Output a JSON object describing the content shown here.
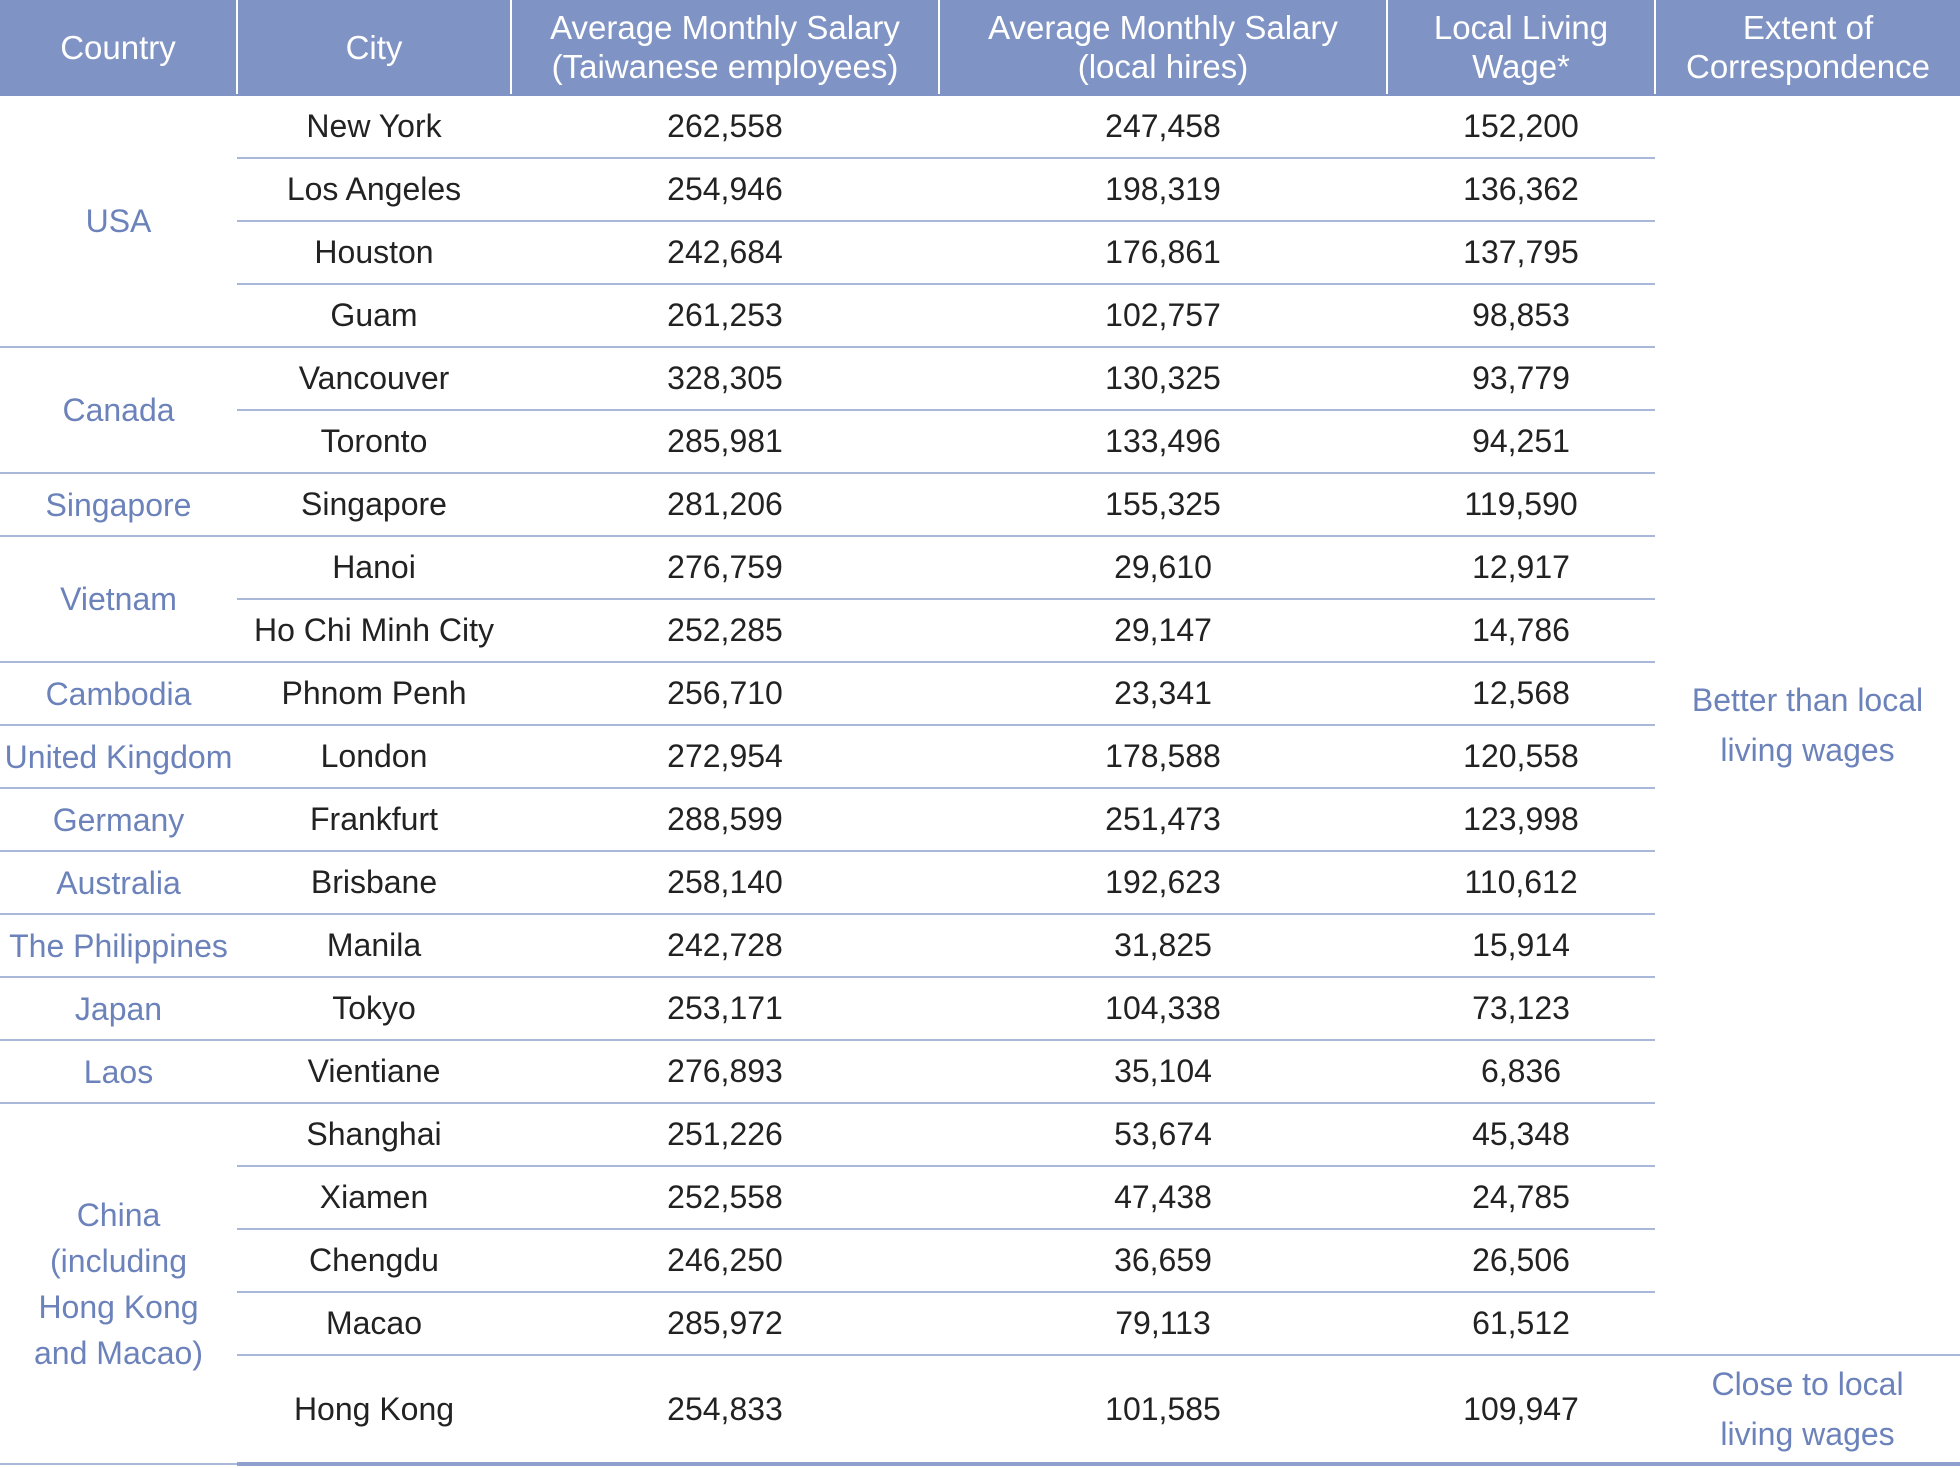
{
  "table": {
    "headers": [
      "Country",
      "City",
      "Average Monthly Salary\n(Taiwanese employees)",
      "Average Monthly Salary\n(local hires)",
      "Local Living\nWage*",
      "Extent of\nCorrespondence"
    ],
    "rows": [
      {
        "country": "USA",
        "city": "New York",
        "tw": "262,558",
        "local": "247,458",
        "wage": "152,200"
      },
      {
        "country": "USA",
        "city": "Los Angeles",
        "tw": "254,946",
        "local": "198,319",
        "wage": "136,362"
      },
      {
        "country": "USA",
        "city": "Houston",
        "tw": "242,684",
        "local": "176,861",
        "wage": "137,795"
      },
      {
        "country": "USA",
        "city": "Guam",
        "tw": "261,253",
        "local": "102,757",
        "wage": "98,853"
      },
      {
        "country": "Canada",
        "city": "Vancouver",
        "tw": "328,305",
        "local": "130,325",
        "wage": "93,779"
      },
      {
        "country": "Canada",
        "city": "Toronto",
        "tw": "285,981",
        "local": "133,496",
        "wage": "94,251"
      },
      {
        "country": "Singapore",
        "city": "Singapore",
        "tw": "281,206",
        "local": "155,325",
        "wage": "119,590"
      },
      {
        "country": "Vietnam",
        "city": "Hanoi",
        "tw": "276,759",
        "local": "29,610",
        "wage": "12,917"
      },
      {
        "country": "Vietnam",
        "city": "Ho Chi Minh City",
        "tw": "252,285",
        "local": "29,147",
        "wage": "14,786"
      },
      {
        "country": "Cambodia",
        "city": "Phnom Penh",
        "tw": "256,710",
        "local": "23,341",
        "wage": "12,568"
      },
      {
        "country": "United Kingdom",
        "city": "London",
        "tw": "272,954",
        "local": "178,588",
        "wage": "120,558"
      },
      {
        "country": "Germany",
        "city": "Frankfurt",
        "tw": "288,599",
        "local": "251,473",
        "wage": "123,998"
      },
      {
        "country": "Australia",
        "city": "Brisbane",
        "tw": "258,140",
        "local": "192,623",
        "wage": "110,612"
      },
      {
        "country": "The Philippines",
        "city": "Manila",
        "tw": "242,728",
        "local": "31,825",
        "wage": "15,914"
      },
      {
        "country": "Japan",
        "city": "Tokyo",
        "tw": "253,171",
        "local": "104,338",
        "wage": "73,123"
      },
      {
        "country": "Laos",
        "city": "Vientiane",
        "tw": "276,893",
        "local": "35,104",
        "wage": "6,836"
      },
      {
        "country": "China\n(including\nHong Kong\nand Macao)",
        "city": "Shanghai",
        "tw": "251,226",
        "local": "53,674",
        "wage": "45,348"
      },
      {
        "country": "China\n(including\nHong Kong\nand Macao)",
        "city": "Xiamen",
        "tw": "252,558",
        "local": "47,438",
        "wage": "24,785"
      },
      {
        "country": "China\n(including\nHong Kong\nand Macao)",
        "city": "Chengdu",
        "tw": "246,250",
        "local": "36,659",
        "wage": "26,506"
      },
      {
        "country": "China\n(including\nHong Kong\nand Macao)",
        "city": "Macao",
        "tw": "285,972",
        "local": "79,113",
        "wage": "61,512"
      },
      {
        "country": "China\n(including\nHong Kong\nand Macao)",
        "city": "Hong Kong",
        "tw": "254,833",
        "local": "101,585",
        "wage": "109,947"
      }
    ],
    "correspondence": [
      {
        "label": "Better than local\nliving wages",
        "span": 20
      },
      {
        "label": "Close to local\nliving wages",
        "span": 1
      }
    ]
  },
  "colors": {
    "header_bg": "#7f93c4",
    "header_text": "#ffffff",
    "accent_text": "#6c82ba",
    "row_divider": "#a9b7d9",
    "body_text": "#222222"
  }
}
